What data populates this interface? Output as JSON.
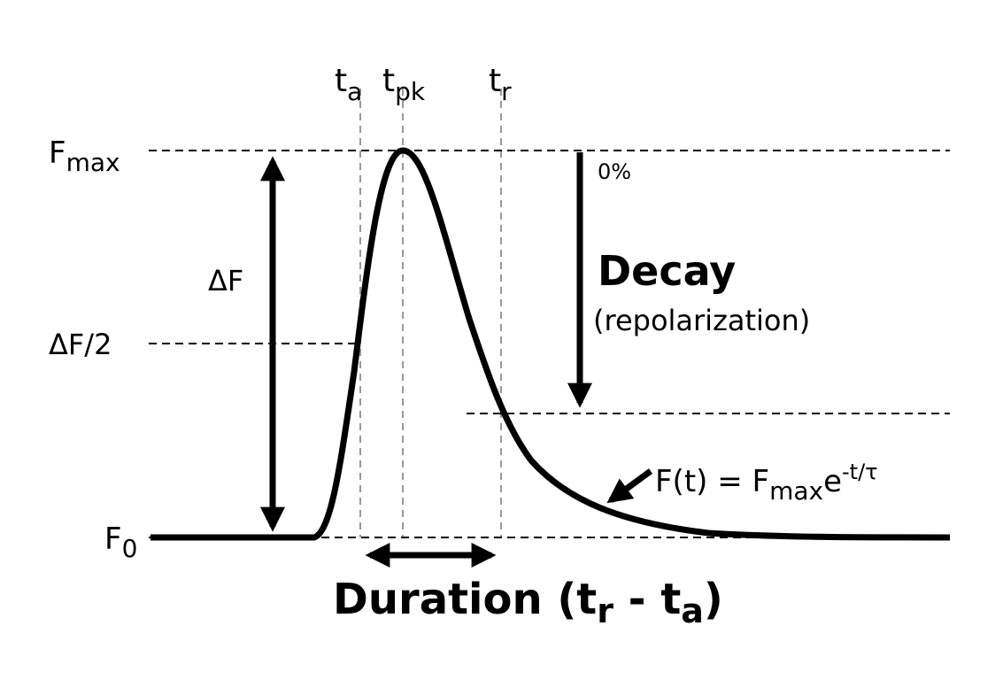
{
  "time_markers": [
    {
      "base": "t",
      "sub": "a"
    },
    {
      "base": "t",
      "sub": "pk"
    },
    {
      "base": "t",
      "sub": "r"
    }
  ],
  "levels": {
    "fmax": {
      "base": "F",
      "sub": "max"
    },
    "half": "ΔF/2",
    "f0": {
      "base": "F",
      "sub": "0"
    }
  },
  "amplitude_label": "ΔF",
  "decay": {
    "start_label": "0%",
    "title": "Decay",
    "subtitle": "(repolarization)"
  },
  "equation": {
    "lhs": "F(t) = F",
    "sub": "max",
    "exp_base": "e",
    "exponent": "-t/τ"
  },
  "duration": {
    "prefix": "Duration (t",
    "s1": "r",
    "mid": " - t",
    "s2": "a",
    "suffix": ")"
  }
}
